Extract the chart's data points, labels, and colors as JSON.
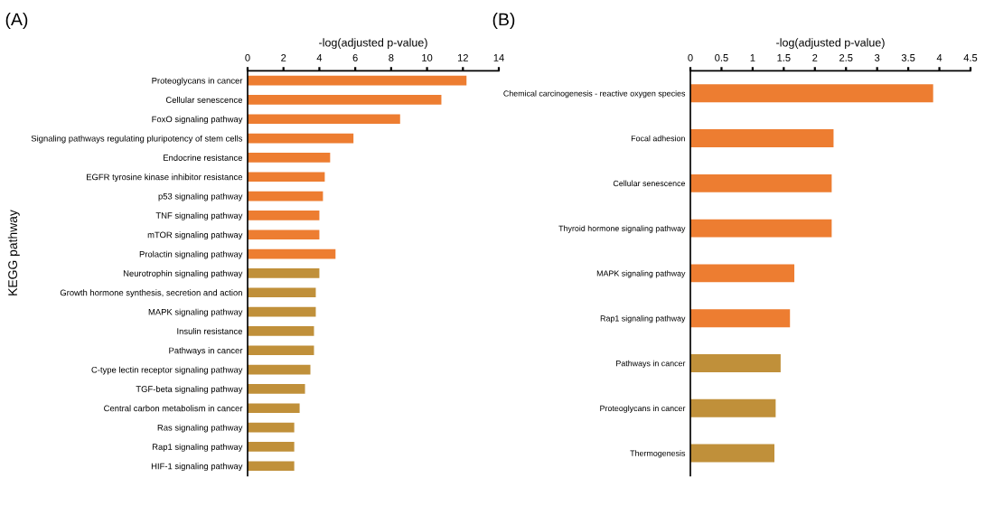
{
  "chart_data": [
    {
      "type": "bar",
      "orientation": "horizontal",
      "title": "(A)",
      "xlabel": "-log(adjusted p-value)",
      "ylabel": "KEGG pathway",
      "categories": [
        "Proteoglycans in cancer",
        "Cellular senescence",
        "FoxO signaling pathway",
        "Signaling pathways regulating pluripotency of stem cells",
        "Endocrine resistance",
        "EGFR tyrosine kinase inhibitor resistance",
        "p53 signaling pathway",
        "TNF signaling pathway",
        "mTOR signaling pathway",
        "Prolactin signaling pathway",
        "Neurotrophin signaling pathway",
        "Growth hormone synthesis, secretion and action",
        "MAPK signaling pathway",
        "Insulin resistance",
        "Pathways in cancer",
        "C-type lectin receptor signaling pathway",
        "TGF-beta signaling pathway",
        "Central carbon metabolism in cancer",
        "Ras signaling pathway",
        "Rap1 signaling pathway",
        "HIF-1 signaling pathway"
      ],
      "values": [
        12.2,
        10.8,
        8.5,
        5.9,
        4.6,
        4.3,
        4.2,
        4.0,
        4.0,
        4.9,
        4.0,
        3.8,
        3.8,
        3.7,
        3.7,
        3.5,
        3.2,
        2.9,
        2.6,
        2.6,
        2.6
      ],
      "colors": [
        "#ed7d31",
        "#ed7d31",
        "#ed7d31",
        "#ed7d31",
        "#ed7d31",
        "#ed7d31",
        "#ed7d31",
        "#ed7d31",
        "#ed7d31",
        "#ed7d31",
        "#c0903a",
        "#c0903a",
        "#c0903a",
        "#c0903a",
        "#c0903a",
        "#c0903a",
        "#c0903a",
        "#c0903a",
        "#c0903a",
        "#c0903a",
        "#c0903a"
      ],
      "xlim": [
        0,
        14
      ],
      "xticks": [
        0,
        2,
        4,
        6,
        8,
        10,
        12,
        14
      ],
      "grid": false,
      "legend": false
    },
    {
      "type": "bar",
      "orientation": "horizontal",
      "title": "(B)",
      "xlabel": "-log(adjusted p-value)",
      "categories": [
        "Chemical carcinogenesis - reactive oxygen species",
        "Focal adhesion",
        "Cellular senescence",
        "Thyroid hormone signaling pathway",
        "MAPK signaling pathway",
        "Rap1 signaling pathway",
        "Pathways in cancer",
        "Proteoglycans in cancer",
        "Thermogenesis"
      ],
      "values": [
        3.9,
        2.3,
        2.27,
        2.27,
        1.67,
        1.6,
        1.45,
        1.37,
        1.35
      ],
      "colors": [
        "#ed7d31",
        "#ed7d31",
        "#ed7d31",
        "#ed7d31",
        "#ed7d31",
        "#ed7d31",
        "#c0903a",
        "#c0903a",
        "#c0903a"
      ],
      "xlim": [
        0,
        4.5
      ],
      "xticks": [
        0,
        0.5,
        1,
        1.5,
        2,
        2.5,
        3,
        3.5,
        4,
        4.5
      ],
      "grid": false,
      "legend": false
    }
  ]
}
